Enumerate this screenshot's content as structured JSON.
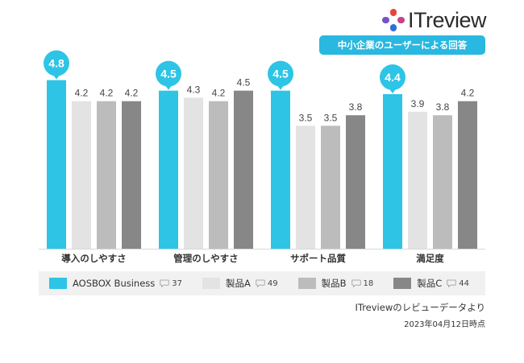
{
  "header": {
    "logo_text": "ITreview",
    "badge_text": "中小企業のユーザーによる回答"
  },
  "chart_data": {
    "type": "bar",
    "categories": [
      "導入のしやすさ",
      "管理のしやすさ",
      "サポート品質",
      "満足度"
    ],
    "series": [
      {
        "name": "AOSBOX Business",
        "values": [
          4.8,
          4.5,
          4.5,
          4.4
        ],
        "color": "#2ec4e6",
        "reviews": "37",
        "highlight": true
      },
      {
        "name": "製品A",
        "values": [
          4.2,
          4.3,
          3.5,
          3.9
        ],
        "color": "#e3e3e3",
        "reviews": "49",
        "highlight": false
      },
      {
        "name": "製品B",
        "values": [
          4.2,
          4.2,
          3.5,
          3.8
        ],
        "color": "#bcbcbc",
        "reviews": "18",
        "highlight": false
      },
      {
        "name": "製品C",
        "values": [
          4.2,
          4.5,
          3.8,
          4.2
        ],
        "color": "#878787",
        "reviews": "44",
        "highlight": false
      }
    ],
    "ylim": [
      0,
      5.5
    ],
    "grid": false,
    "legend_position": "bottom"
  },
  "footer": {
    "source": "ITreviewのレビューデータより",
    "date": "2023年04月12日時点"
  }
}
